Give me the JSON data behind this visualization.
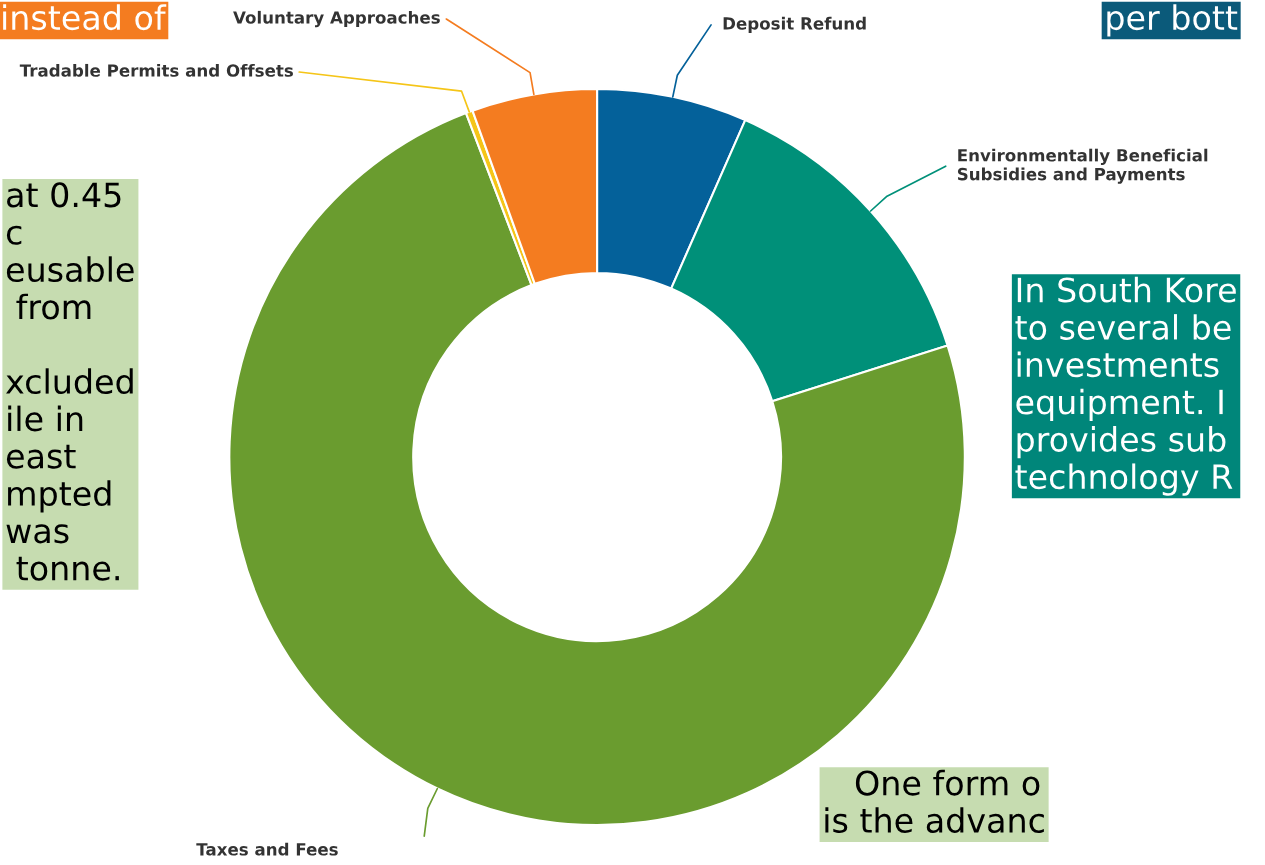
{
  "chart_data": {
    "type": "donut",
    "categories": [
      "Deposit Refund",
      "Environmentally Beneficial\nSubsidies and Payments",
      "Taxes and Fees",
      "Tradable Permits and Offsets",
      "Voluntary Approaches"
    ],
    "values": [
      6.6,
      13.5,
      74.1,
      0.3,
      5.5
    ],
    "colors": [
      "#04619a",
      "#009079",
      "#6a9c2f",
      "#f5c518",
      "#f47c20"
    ],
    "annotations": [
      "instead of",
      "per bott",
      "at 0.45\nc\neusable\n from\n\nxcluded\nile in\neast\nmpted\nwas\n tonne.",
      "In South Kore\nto several be\ninvestments\nequipment. I\nprovides sub\ntechnology R",
      "   One form o\nis the advanc"
    ],
    "legend": false
  }
}
